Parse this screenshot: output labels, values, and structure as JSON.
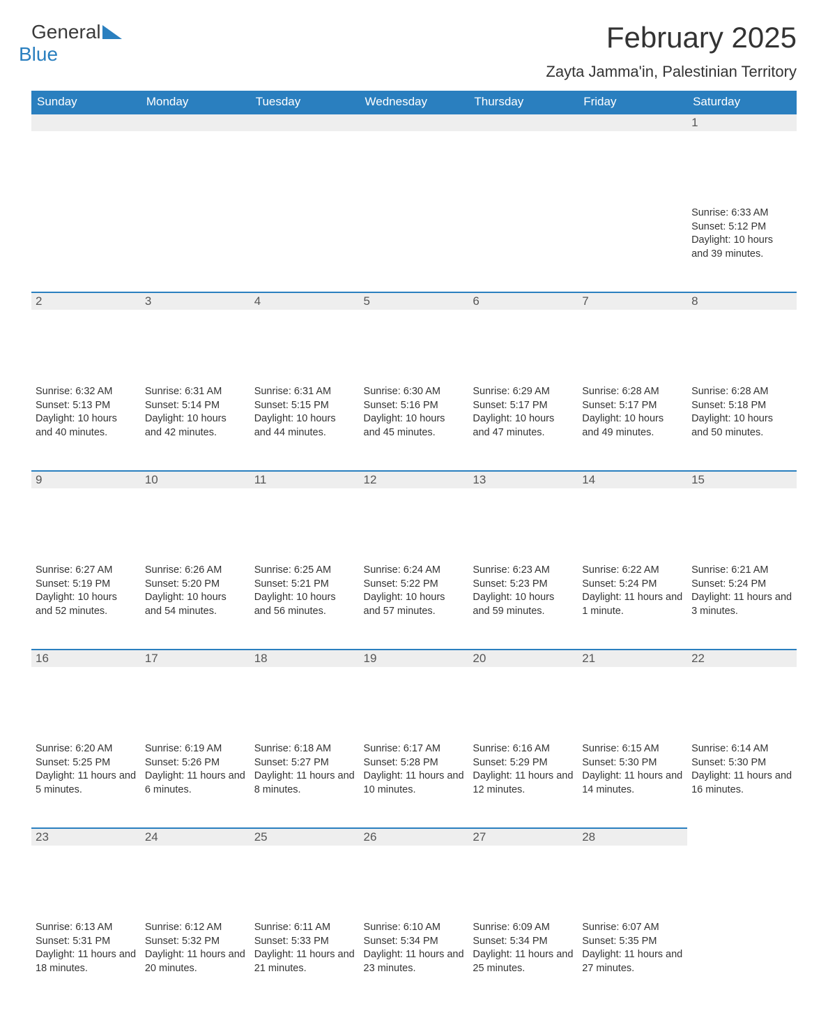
{
  "logo": {
    "part1": "General",
    "part2": "Blue"
  },
  "title": "February 2025",
  "location": "Zayta Jamma'in, Palestinian Territory",
  "colors": {
    "header_bg": "#2a7fbf",
    "header_text": "#ffffff",
    "daynum_bg": "#eeeeee",
    "daynum_border": "#2a7fbf",
    "body_text": "#333333",
    "page_bg": "#ffffff"
  },
  "typography": {
    "title_fontsize": 42,
    "location_fontsize": 22,
    "header_fontsize": 17,
    "daynum_fontsize": 17,
    "content_fontsize": 14.5
  },
  "layout": {
    "columns": 7,
    "rows": 5,
    "first_day_column": 6
  },
  "weekdays": [
    "Sunday",
    "Monday",
    "Tuesday",
    "Wednesday",
    "Thursday",
    "Friday",
    "Saturday"
  ],
  "days": [
    {
      "n": 1,
      "sunrise": "6:33 AM",
      "sunset": "5:12 PM",
      "daylight": "10 hours and 39 minutes."
    },
    {
      "n": 2,
      "sunrise": "6:32 AM",
      "sunset": "5:13 PM",
      "daylight": "10 hours and 40 minutes."
    },
    {
      "n": 3,
      "sunrise": "6:31 AM",
      "sunset": "5:14 PM",
      "daylight": "10 hours and 42 minutes."
    },
    {
      "n": 4,
      "sunrise": "6:31 AM",
      "sunset": "5:15 PM",
      "daylight": "10 hours and 44 minutes."
    },
    {
      "n": 5,
      "sunrise": "6:30 AM",
      "sunset": "5:16 PM",
      "daylight": "10 hours and 45 minutes."
    },
    {
      "n": 6,
      "sunrise": "6:29 AM",
      "sunset": "5:17 PM",
      "daylight": "10 hours and 47 minutes."
    },
    {
      "n": 7,
      "sunrise": "6:28 AM",
      "sunset": "5:17 PM",
      "daylight": "10 hours and 49 minutes."
    },
    {
      "n": 8,
      "sunrise": "6:28 AM",
      "sunset": "5:18 PM",
      "daylight": "10 hours and 50 minutes."
    },
    {
      "n": 9,
      "sunrise": "6:27 AM",
      "sunset": "5:19 PM",
      "daylight": "10 hours and 52 minutes."
    },
    {
      "n": 10,
      "sunrise": "6:26 AM",
      "sunset": "5:20 PM",
      "daylight": "10 hours and 54 minutes."
    },
    {
      "n": 11,
      "sunrise": "6:25 AM",
      "sunset": "5:21 PM",
      "daylight": "10 hours and 56 minutes."
    },
    {
      "n": 12,
      "sunrise": "6:24 AM",
      "sunset": "5:22 PM",
      "daylight": "10 hours and 57 minutes."
    },
    {
      "n": 13,
      "sunrise": "6:23 AM",
      "sunset": "5:23 PM",
      "daylight": "10 hours and 59 minutes."
    },
    {
      "n": 14,
      "sunrise": "6:22 AM",
      "sunset": "5:24 PM",
      "daylight": "11 hours and 1 minute."
    },
    {
      "n": 15,
      "sunrise": "6:21 AM",
      "sunset": "5:24 PM",
      "daylight": "11 hours and 3 minutes."
    },
    {
      "n": 16,
      "sunrise": "6:20 AM",
      "sunset": "5:25 PM",
      "daylight": "11 hours and 5 minutes."
    },
    {
      "n": 17,
      "sunrise": "6:19 AM",
      "sunset": "5:26 PM",
      "daylight": "11 hours and 6 minutes."
    },
    {
      "n": 18,
      "sunrise": "6:18 AM",
      "sunset": "5:27 PM",
      "daylight": "11 hours and 8 minutes."
    },
    {
      "n": 19,
      "sunrise": "6:17 AM",
      "sunset": "5:28 PM",
      "daylight": "11 hours and 10 minutes."
    },
    {
      "n": 20,
      "sunrise": "6:16 AM",
      "sunset": "5:29 PM",
      "daylight": "11 hours and 12 minutes."
    },
    {
      "n": 21,
      "sunrise": "6:15 AM",
      "sunset": "5:30 PM",
      "daylight": "11 hours and 14 minutes."
    },
    {
      "n": 22,
      "sunrise": "6:14 AM",
      "sunset": "5:30 PM",
      "daylight": "11 hours and 16 minutes."
    },
    {
      "n": 23,
      "sunrise": "6:13 AM",
      "sunset": "5:31 PM",
      "daylight": "11 hours and 18 minutes."
    },
    {
      "n": 24,
      "sunrise": "6:12 AM",
      "sunset": "5:32 PM",
      "daylight": "11 hours and 20 minutes."
    },
    {
      "n": 25,
      "sunrise": "6:11 AM",
      "sunset": "5:33 PM",
      "daylight": "11 hours and 21 minutes."
    },
    {
      "n": 26,
      "sunrise": "6:10 AM",
      "sunset": "5:34 PM",
      "daylight": "11 hours and 23 minutes."
    },
    {
      "n": 27,
      "sunrise": "6:09 AM",
      "sunset": "5:34 PM",
      "daylight": "11 hours and 25 minutes."
    },
    {
      "n": 28,
      "sunrise": "6:07 AM",
      "sunset": "5:35 PM",
      "daylight": "11 hours and 27 minutes."
    }
  ],
  "labels": {
    "sunrise": "Sunrise: ",
    "sunset": "Sunset: ",
    "daylight": "Daylight: "
  }
}
